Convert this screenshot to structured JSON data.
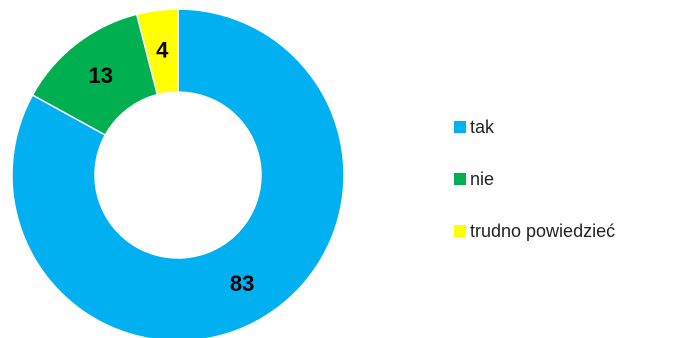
{
  "chart_data": {
    "type": "pie",
    "variant": "donut",
    "title": "",
    "legend_position": "right",
    "slices": [
      {
        "label": "tak",
        "value": 83,
        "display": "83",
        "color": "#00B0F0"
      },
      {
        "label": "nie",
        "value": 13,
        "display": "13",
        "color": "#00B050"
      },
      {
        "label": "trudno powiedzieć",
        "value": 4,
        "display": "4",
        "color": "#FFFF00"
      }
    ]
  }
}
